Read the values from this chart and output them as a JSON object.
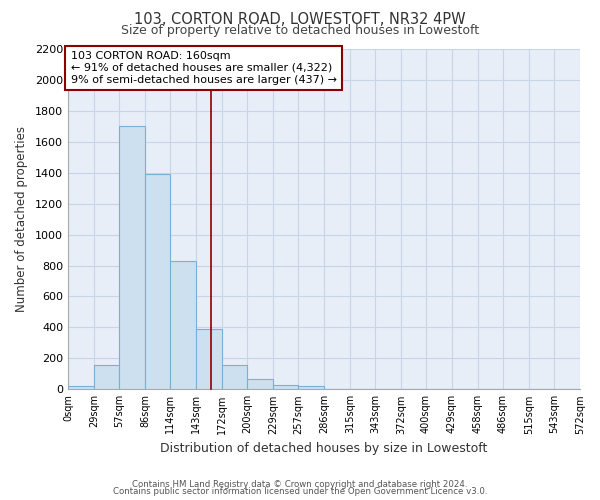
{
  "title": "103, CORTON ROAD, LOWESTOFT, NR32 4PW",
  "subtitle": "Size of property relative to detached houses in Lowestoft",
  "xlabel": "Distribution of detached houses by size in Lowestoft",
  "ylabel": "Number of detached properties",
  "bar_edges": [
    0,
    29,
    57,
    86,
    114,
    143,
    172,
    200,
    229,
    257,
    286,
    315,
    343,
    372,
    400,
    429,
    458,
    486,
    515,
    543,
    572
  ],
  "bar_heights": [
    20,
    155,
    1700,
    1395,
    830,
    390,
    160,
    65,
    30,
    20,
    0,
    0,
    0,
    0,
    0,
    0,
    0,
    0,
    0,
    0
  ],
  "bar_color": "#cce0f0",
  "bar_edgecolor": "#7ab0d4",
  "property_line_x": 160,
  "property_line_color": "#8b0000",
  "annotation_line1": "103 CORTON ROAD: 160sqm",
  "annotation_line2": "← 91% of detached houses are smaller (4,322)",
  "annotation_line3": "9% of semi-detached houses are larger (437) →",
  "annotation_box_edgecolor": "#8b0000",
  "annotation_box_facecolor": "white",
  "ylim": [
    0,
    2200
  ],
  "yticks": [
    0,
    200,
    400,
    600,
    800,
    1000,
    1200,
    1400,
    1600,
    1800,
    2000,
    2200
  ],
  "tick_labels": [
    "0sqm",
    "29sqm",
    "57sqm",
    "86sqm",
    "114sqm",
    "143sqm",
    "172sqm",
    "200sqm",
    "229sqm",
    "257sqm",
    "286sqm",
    "315sqm",
    "343sqm",
    "372sqm",
    "400sqm",
    "429sqm",
    "458sqm",
    "486sqm",
    "515sqm",
    "543sqm",
    "572sqm"
  ],
  "footer_line1": "Contains HM Land Registry data © Crown copyright and database right 2024.",
  "footer_line2": "Contains public sector information licensed under the Open Government Licence v3.0.",
  "grid_color": "#c8d4e8",
  "background_color": "#e8eef8",
  "xlim_max": 572
}
